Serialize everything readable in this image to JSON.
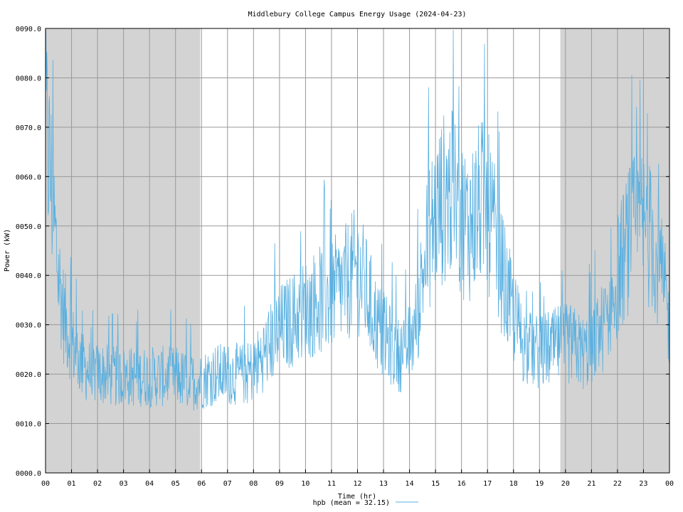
{
  "chart_data": {
    "type": "line",
    "title": "Middlebury College Campus Energy Usage (2024-04-23)",
    "xlabel": "Time (hr)",
    "ylabel": "Power (kW)",
    "xlim": [
      0,
      24
    ],
    "ylim": [
      0,
      90
    ],
    "grid": true,
    "legend_placement": "bottom-center",
    "x_ticks": [
      {
        "value": 0,
        "label": "00"
      },
      {
        "value": 1,
        "label": "01"
      },
      {
        "value": 2,
        "label": "02"
      },
      {
        "value": 3,
        "label": "03"
      },
      {
        "value": 4,
        "label": "04"
      },
      {
        "value": 5,
        "label": "05"
      },
      {
        "value": 6,
        "label": "06"
      },
      {
        "value": 7,
        "label": "07"
      },
      {
        "value": 8,
        "label": "08"
      },
      {
        "value": 9,
        "label": "09"
      },
      {
        "value": 10,
        "label": "10"
      },
      {
        "value": 11,
        "label": "11"
      },
      {
        "value": 12,
        "label": "12"
      },
      {
        "value": 13,
        "label": "13"
      },
      {
        "value": 14,
        "label": "14"
      },
      {
        "value": 15,
        "label": "15"
      },
      {
        "value": 16,
        "label": "16"
      },
      {
        "value": 17,
        "label": "17"
      },
      {
        "value": 18,
        "label": "18"
      },
      {
        "value": 19,
        "label": "19"
      },
      {
        "value": 20,
        "label": "20"
      },
      {
        "value": 21,
        "label": "21"
      },
      {
        "value": 22,
        "label": "22"
      },
      {
        "value": 23,
        "label": "23"
      },
      {
        "value": 24,
        "label": "00"
      }
    ],
    "y_ticks": [
      {
        "value": 0,
        "label": "0000.0"
      },
      {
        "value": 10,
        "label": "0010.0"
      },
      {
        "value": 20,
        "label": "0020.0"
      },
      {
        "value": 30,
        "label": "0030.0"
      },
      {
        "value": 40,
        "label": "0040.0"
      },
      {
        "value": 50,
        "label": "0050.0"
      },
      {
        "value": 60,
        "label": "0060.0"
      },
      {
        "value": 70,
        "label": "0070.0"
      },
      {
        "value": 80,
        "label": "0080.0"
      },
      {
        "value": 90,
        "label": "0090.0"
      }
    ],
    "night_bands": [
      [
        0,
        5.95
      ],
      [
        19.8,
        24
      ]
    ],
    "colors": {
      "series": "#5ab0e0",
      "night": "#d3d3d3",
      "grid": "#999999",
      "border": "#000000"
    },
    "series": [
      {
        "name": "hpb",
        "legend_label": "hpb (mean = 32.15)",
        "x": [
          0.0,
          0.1,
          0.2,
          0.3,
          0.4,
          0.5,
          0.6,
          0.7,
          0.8,
          0.9,
          1.0,
          1.1,
          1.2,
          1.3,
          1.4,
          1.5,
          1.6,
          1.7,
          1.8,
          1.9,
          2.0,
          2.25,
          2.5,
          2.75,
          3.0,
          3.25,
          3.5,
          3.75,
          4.0,
          4.25,
          4.5,
          4.75,
          5.0,
          5.25,
          5.5,
          5.75,
          5.95,
          6.1,
          6.3,
          6.5,
          6.75,
          7.0,
          7.25,
          7.5,
          7.75,
          8.0,
          8.25,
          8.5,
          8.75,
          9.0,
          9.25,
          9.5,
          9.75,
          10.0,
          10.25,
          10.5,
          10.75,
          11.0,
          11.25,
          11.5,
          11.75,
          12.0,
          12.25,
          12.5,
          12.75,
          13.0,
          13.25,
          13.5,
          13.75,
          14.0,
          14.25,
          14.5,
          14.75,
          15.0,
          15.25,
          15.5,
          15.75,
          16.0,
          16.25,
          16.5,
          16.75,
          17.0,
          17.25,
          17.5,
          17.75,
          18.0,
          18.25,
          18.5,
          18.75,
          19.0,
          19.25,
          19.5,
          19.75,
          20.0,
          20.25,
          20.5,
          20.75,
          21.0,
          21.25,
          21.5,
          21.75,
          22.0,
          22.25,
          22.5,
          22.75,
          23.0,
          23.25,
          23.5,
          23.75,
          24.0
        ],
        "y": [
          72,
          65,
          60,
          52,
          46,
          40,
          36,
          32,
          30,
          28,
          27,
          25,
          24,
          23,
          22,
          21,
          21,
          20.5,
          20,
          20,
          20,
          20,
          19.5,
          19.5,
          19.5,
          19.5,
          19.5,
          19.5,
          19.5,
          19.5,
          19.5,
          19.5,
          19.5,
          19,
          18.5,
          18.5,
          18.5,
          19,
          19.5,
          20,
          20,
          20,
          20,
          20,
          20,
          21,
          23,
          25,
          27,
          29,
          30,
          31,
          32,
          33,
          34,
          35,
          35,
          36,
          37,
          38,
          40,
          41,
          38,
          34,
          30,
          28,
          26,
          24,
          24,
          26,
          30,
          40,
          48,
          52,
          55,
          57,
          55,
          52,
          50,
          52,
          55,
          53,
          48,
          42,
          36,
          32,
          28,
          25,
          25,
          24,
          25,
          25,
          26,
          26,
          26,
          25,
          24,
          26,
          28,
          30,
          34,
          40,
          44,
          48,
          50,
          50,
          48,
          44,
          38,
          30
        ]
      }
    ]
  }
}
